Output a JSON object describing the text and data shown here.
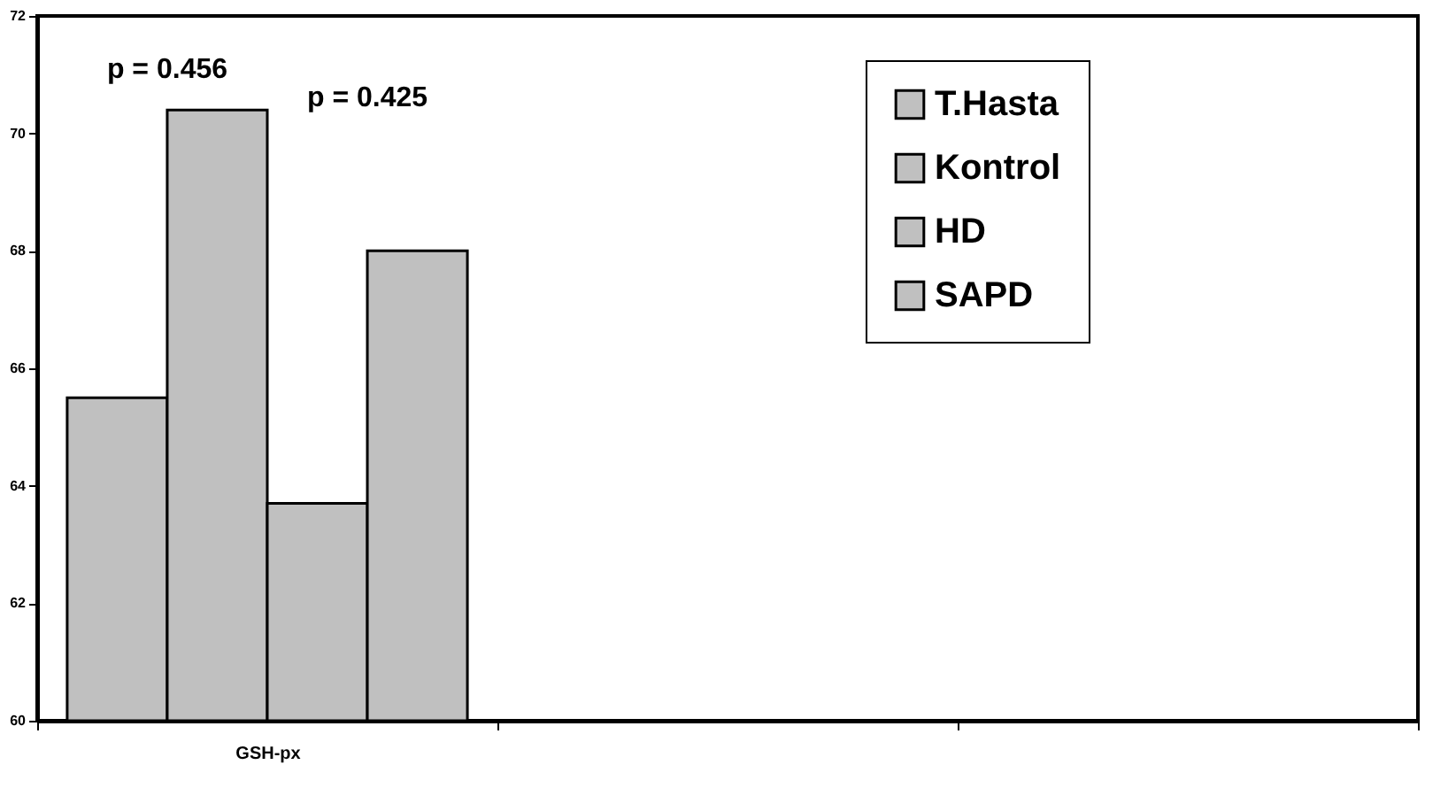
{
  "chart_data": {
    "type": "bar",
    "categories": [
      "GSH-px",
      null,
      null
    ],
    "series": [
      {
        "name": "T.Hasta",
        "color": "#c0c0c0",
        "values": [
          65.5,
          null,
          null
        ]
      },
      {
        "name": "Kontrol",
        "color": "#c0c0c0",
        "values": [
          70.4,
          null,
          null
        ]
      },
      {
        "name": "HD",
        "color": "#c0c0c0",
        "values": [
          63.7,
          null,
          null
        ]
      },
      {
        "name": "SAPD",
        "color": "#c0c0c0",
        "values": [
          68.0,
          null,
          null
        ]
      }
    ],
    "ylim": [
      60,
      72
    ],
    "yticks": [
      60,
      62,
      64,
      66,
      68,
      70,
      72
    ],
    "annotations": [
      "p = 0.456",
      "p = 0.425"
    ],
    "grid": false,
    "legend": "top right"
  }
}
